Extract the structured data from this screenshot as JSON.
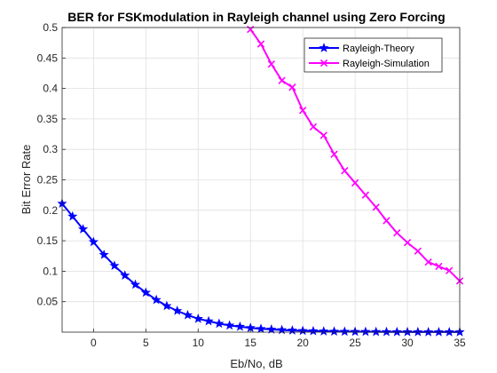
{
  "chart_data": {
    "type": "line",
    "title": "BER for FSKmodulation in Rayleigh channel using Zero Forcing",
    "xlabel": "Eb/No, dB",
    "ylabel": "Bit Error Rate",
    "xlim": [
      -3,
      35
    ],
    "ylim": [
      0,
      0.5
    ],
    "xticks": [
      0,
      5,
      10,
      15,
      20,
      25,
      30,
      35
    ],
    "yticks": [
      0.05,
      0.1,
      0.15,
      0.2,
      0.25,
      0.3,
      0.35,
      0.4,
      0.45,
      0.5
    ],
    "grid": true,
    "legend_position": "top-right",
    "series": [
      {
        "name": "Rayleigh-Theory",
        "color": "#0000ff",
        "marker": "star",
        "x": [
          -3,
          -2,
          -1,
          0,
          1,
          2,
          3,
          4,
          5,
          6,
          7,
          8,
          9,
          10,
          11,
          12,
          13,
          14,
          15,
          16,
          17,
          18,
          19,
          20,
          21,
          22,
          23,
          24,
          25,
          26,
          27,
          28,
          29,
          30,
          31,
          32,
          33,
          34,
          35
        ],
        "y": [
          0.211,
          0.19,
          0.169,
          0.148,
          0.127,
          0.109,
          0.093,
          0.078,
          0.065,
          0.053,
          0.043,
          0.035,
          0.028,
          0.022,
          0.018,
          0.014,
          0.011,
          0.009,
          0.007,
          0.0055,
          0.0045,
          0.0035,
          0.0028,
          0.0022,
          0.0018,
          0.0014,
          0.0011,
          0.0009,
          0.0007,
          0.0006,
          0.0005,
          0.0004,
          0.0003,
          0.0002,
          0.0002,
          0.0001,
          0.0001,
          0.0001,
          0.0001
        ]
      },
      {
        "name": "Rayleigh-Simulation",
        "color": "#ff00ff",
        "marker": "x",
        "x": [
          15,
          16,
          17,
          18,
          19,
          20,
          21,
          22,
          23,
          24,
          25,
          26,
          27,
          28,
          29,
          30,
          31,
          32,
          33,
          34,
          35
        ],
        "y": [
          0.497,
          0.473,
          0.44,
          0.413,
          0.402,
          0.364,
          0.337,
          0.323,
          0.292,
          0.265,
          0.245,
          0.225,
          0.205,
          0.183,
          0.163,
          0.147,
          0.133,
          0.115,
          0.108,
          0.101,
          0.084
        ]
      }
    ]
  }
}
